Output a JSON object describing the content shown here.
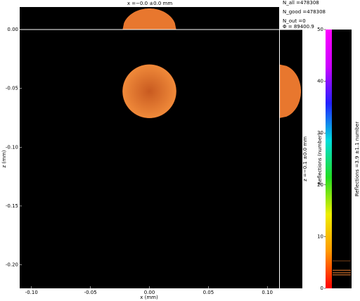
{
  "chart_data": {
    "type": "image",
    "title": "x =−0.0 ±0.0 mm",
    "stats": [
      "N_all =478308",
      "N_good =478308",
      "N_out =0",
      "Φ = 89400.9"
    ],
    "xlabel": "x (mm)",
    "ylabel": "z (mm)",
    "right_title": "z =−0.1 ±0.0 mm",
    "xlim": [
      -0.11,
      0.11
    ],
    "ylim": [
      -0.22,
      0.0
    ],
    "xticks": [
      {
        "value": -0.1,
        "label": "-0.10"
      },
      {
        "value": -0.05,
        "label": "-0.05"
      },
      {
        "value": 0,
        "label": "0.00"
      },
      {
        "value": 0.05,
        "label": "0.05"
      },
      {
        "value": 0.1,
        "label": "0.10"
      }
    ],
    "yticks": [
      {
        "value": 0,
        "label": "0.00"
      },
      {
        "value": -0.05,
        "label": "-0.05"
      },
      {
        "value": -0.1,
        "label": "-0.10"
      },
      {
        "value": -0.15,
        "label": "-0.15"
      },
      {
        "value": -0.2,
        "label": "-0.20"
      }
    ],
    "spot": {
      "x": 0,
      "z": -0.0525,
      "radius": 0.0227,
      "color": "#e8772e"
    },
    "colorbar": {
      "label": "Reflections (number)",
      "right_label": "Reflections =3.9 ±1.1 number",
      "clim": [
        0,
        50
      ],
      "ticks": [
        0,
        10,
        20,
        30,
        40,
        50
      ],
      "colors": [
        "#ff0000",
        "#ff9900",
        "#eeee00",
        "#22dd22",
        "#00dddd",
        "#2222ff",
        "#cc00ff",
        "#ff00ff"
      ],
      "levels": [
        2.6,
        3,
        3.5,
        5.3
      ],
      "level_color": "#f08030"
    }
  }
}
